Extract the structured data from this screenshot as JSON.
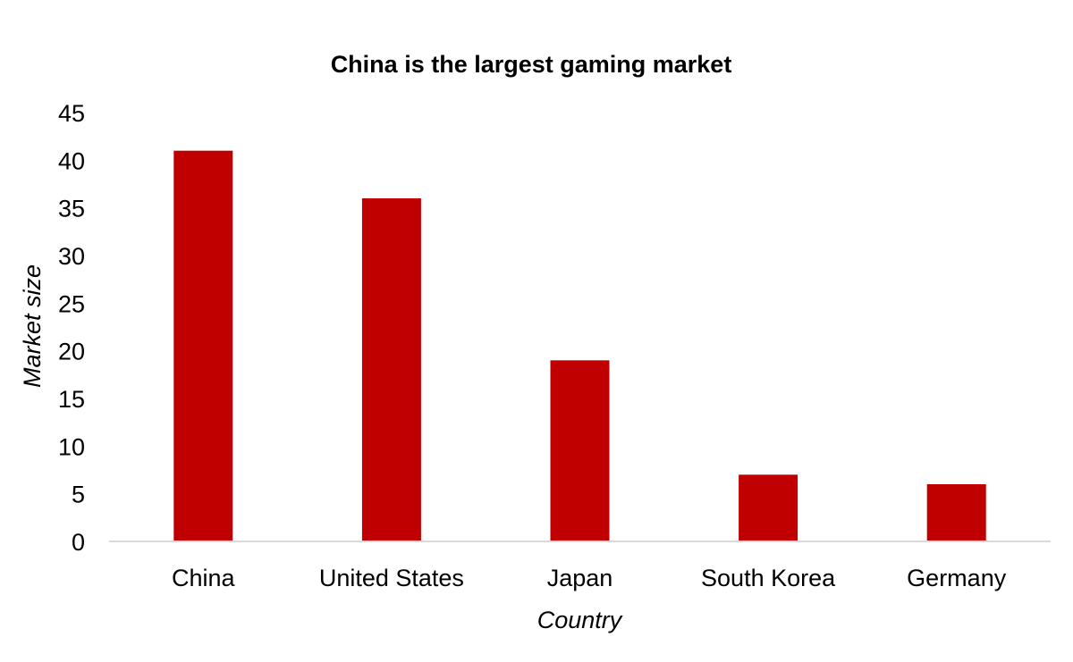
{
  "chart_data": {
    "type": "bar",
    "title": "China is the largest gaming market",
    "xlabel": "Country",
    "ylabel": "Market size",
    "categories": [
      "China",
      "United States",
      "Japan",
      "South Korea",
      "Germany"
    ],
    "values": [
      41,
      36,
      19,
      7,
      6
    ],
    "ylim": [
      0,
      45
    ],
    "yticks": [
      "0",
      "5",
      "10",
      "15",
      "20",
      "25",
      "30",
      "35",
      "40",
      "45"
    ],
    "grid": false,
    "legend": "none",
    "bar_color": "#C00000",
    "axis_line_color": "#D9D9D9"
  }
}
